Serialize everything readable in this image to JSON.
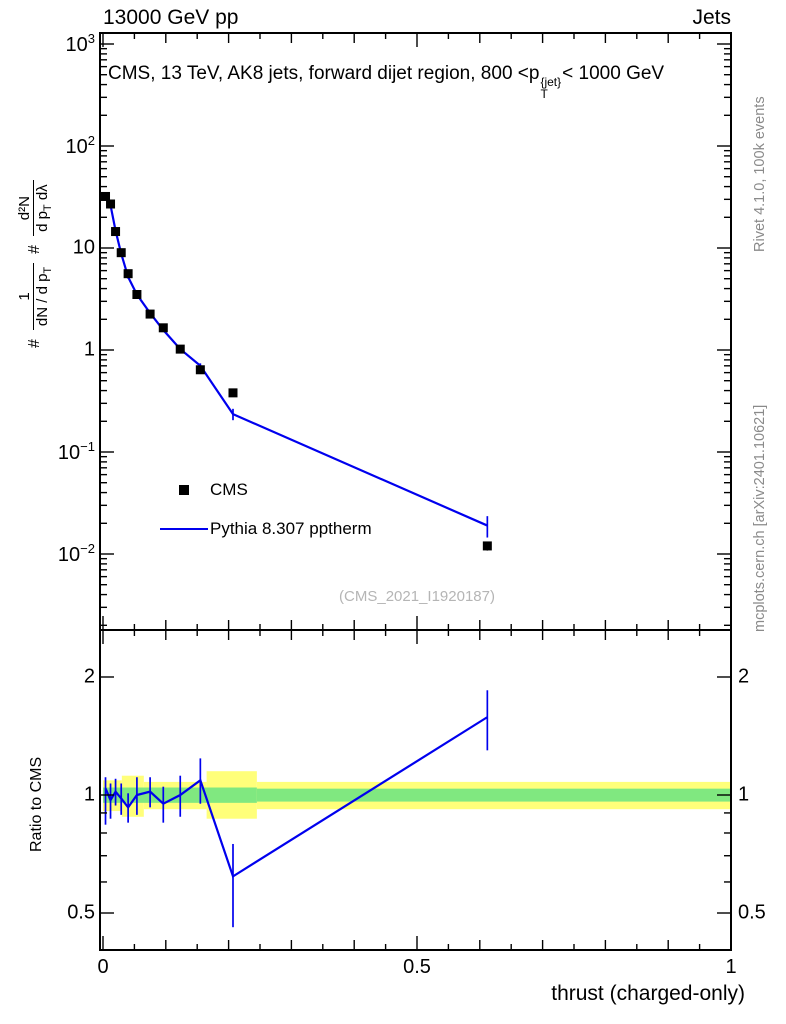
{
  "header": {
    "left": "13000 GeV pp",
    "right": "Jets"
  },
  "panel_title": {
    "prefix": "CMS, 13 TeV, AK8 jets, forward dijet region, 800 <p",
    "sup": "{jet}",
    "sub": "T",
    "suffix": "< 1000 GeV"
  },
  "ylabel": {
    "hash1": "#",
    "frac1_num": "1",
    "frac1_den": "dN / d p",
    "frac1_den_sub": "T",
    "hash2": "#",
    "frac2_num": "d²N",
    "frac2_den": "d p",
    "frac2_den_sub": "T",
    "frac2_den_tail": " dλ"
  },
  "ratio_ylabel": "Ratio to CMS",
  "xlabel": "thrust (charged-only)",
  "legend": {
    "cms_label": "CMS",
    "pythia_label": "Pythia 8.307 pptherm"
  },
  "watermark": "(CMS_2021_I1920187)",
  "side_notes": {
    "top": "Rivet 4.1.0, 100k events",
    "bottom": "mcplots.cern.ch [arXiv:2401.10621]"
  },
  "colors": {
    "line": "#0000ee",
    "marker": "#000000",
    "band_yellow": "#ffff7a",
    "band_green": "#80e880",
    "watermark": "#b5b5b5",
    "side_text": "#8a8a8a"
  },
  "axes": {
    "x_ticks": [
      {
        "label": "0",
        "v": 0
      },
      {
        "label": "0.5",
        "v": 0.5
      },
      {
        "label": "1",
        "v": 1
      }
    ],
    "main_y_ticks": [
      {
        "base": "10",
        "exp": "3",
        "v": 1000
      },
      {
        "base": "10",
        "exp": "2",
        "v": 100
      },
      {
        "base": "10",
        "exp": "",
        "v": 10
      },
      {
        "base": "1",
        "exp": "",
        "v": 1
      },
      {
        "base": "10",
        "exp": "−1",
        "v": 0.1
      },
      {
        "base": "10",
        "exp": "−2",
        "v": 0.01
      }
    ],
    "ratio_y_ticks": [
      {
        "label": "2",
        "v": 2
      },
      {
        "label": "1",
        "v": 1
      },
      {
        "label": "0.5",
        "v": 0.5
      }
    ]
  },
  "chart_data": {
    "type": "line",
    "title": "CMS, 13 TeV, AK8 jets, forward dijet region, 800 <pT{jet}< 1000 GeV",
    "xlabel": "thrust (charged-only)",
    "ylabel": "# 1/(dN/dpT) # d²N/(dpT dλ)",
    "x_axis_scale": "linear",
    "y_axis_scale": "log",
    "x_range": [
      0,
      1
    ],
    "main_y_log_range": [
      0.0018,
      1282
    ],
    "ratio_y_log_range": [
      0.4,
      2.64
    ],
    "series": [
      {
        "name": "CMS",
        "style": "points",
        "color": "#000000",
        "x": [
          0.004,
          0.012,
          0.02,
          0.029,
          0.04,
          0.054,
          0.075,
          0.096,
          0.123,
          0.155,
          0.207,
          0.612
        ],
        "y": [
          32,
          27,
          14.5,
          9.0,
          5.6,
          3.5,
          2.25,
          1.65,
          1.02,
          0.64,
          0.38,
          0.012
        ],
        "yerr": [
          1.5,
          1.1,
          0.6,
          0.4,
          0.25,
          0.16,
          0.11,
          0.08,
          0.05,
          0.035,
          0.022,
          0.0012
        ]
      },
      {
        "name": "Pythia 8.307 pptherm",
        "style": "line",
        "color": "#0000ee",
        "x": [
          0.004,
          0.012,
          0.02,
          0.029,
          0.04,
          0.054,
          0.075,
          0.096,
          0.123,
          0.155,
          0.207,
          0.612
        ],
        "y": [
          33.3,
          26.2,
          14.8,
          8.8,
          5.2,
          3.5,
          2.3,
          1.57,
          1.02,
          0.7,
          0.235,
          0.019
        ],
        "yerr": [
          0.8,
          0.6,
          0.4,
          0.28,
          0.2,
          0.14,
          0.1,
          0.07,
          0.05,
          0.04,
          0.03,
          0.0045
        ]
      }
    ],
    "ratio": {
      "name": "Pythia / CMS",
      "x": [
        0.004,
        0.012,
        0.02,
        0.029,
        0.04,
        0.054,
        0.075,
        0.096,
        0.123,
        0.155,
        0.207,
        0.612
      ],
      "y": [
        1.04,
        0.97,
        1.02,
        0.98,
        0.93,
        1.0,
        1.02,
        0.95,
        1.0,
        1.09,
        0.62,
        1.58
      ],
      "yerr_lo": [
        0.2,
        0.1,
        0.08,
        0.09,
        0.08,
        0.11,
        0.09,
        0.1,
        0.12,
        0.14,
        0.16,
        0.28
      ],
      "yerr_hi": [
        0.07,
        0.1,
        0.08,
        0.09,
        0.08,
        0.11,
        0.09,
        0.1,
        0.12,
        0.15,
        0.13,
        0.27
      ]
    },
    "bands": {
      "yellow": [
        {
          "x0": 0,
          "x1": 0.03,
          "lo": 0.91,
          "hi": 1.09
        },
        {
          "x0": 0.03,
          "x1": 0.065,
          "lo": 0.88,
          "hi": 1.12
        },
        {
          "x0": 0.065,
          "x1": 0.165,
          "lo": 0.92,
          "hi": 1.08
        },
        {
          "x0": 0.165,
          "x1": 0.245,
          "lo": 0.87,
          "hi": 1.15
        },
        {
          "x0": 0.245,
          "x1": 1.0,
          "lo": 0.92,
          "hi": 1.08
        }
      ],
      "green": [
        {
          "x0": 0,
          "x1": 0.245,
          "lo": 0.955,
          "hi": 1.045
        },
        {
          "x0": 0.245,
          "x1": 1.0,
          "lo": 0.962,
          "hi": 1.038
        }
      ]
    },
    "legend_position": "center-left",
    "grid": false
  }
}
